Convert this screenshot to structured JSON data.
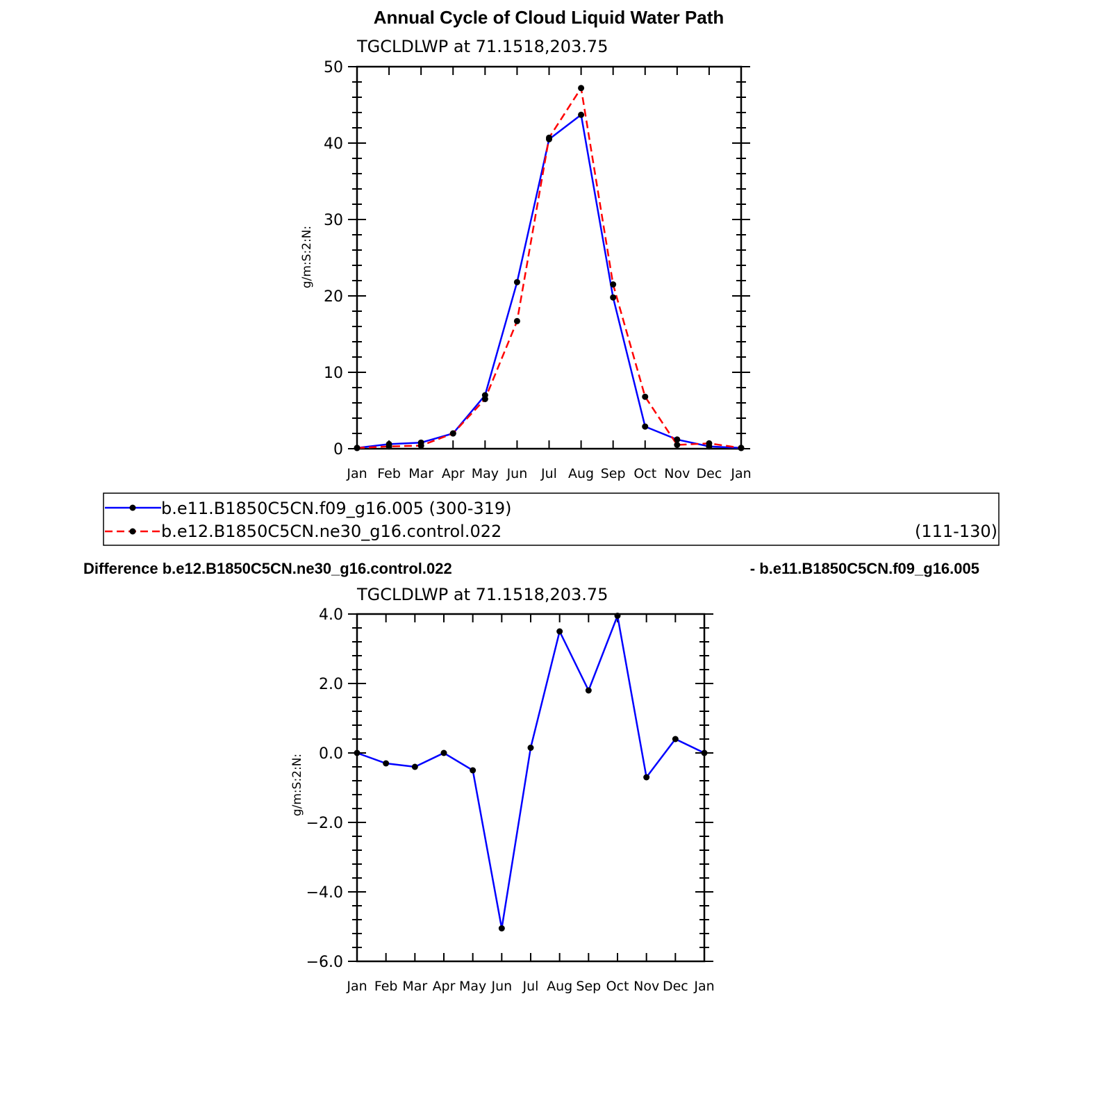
{
  "main_title": "Annual Cycle of Cloud Liquid Water Path",
  "diff_title_left": "Difference b.e12.B1850C5CN.ne30_g16.control.022",
  "diff_title_right": "- b.e11.B1850C5CN.f09_g16.005",
  "legend": {
    "entries": [
      {
        "label": "b.e11.B1850C5CN.f09_g16.005 (300-319)",
        "years": "",
        "color": "#0000ff",
        "dash": "solid"
      },
      {
        "label": "b.e12.B1850C5CN.ne30_g16.control.022",
        "years": "(111-130)",
        "color": "#ff0000",
        "dash": "dashed"
      }
    ]
  },
  "chart_data": [
    {
      "type": "line",
      "title": "TGCLDLWP  at  71.1518,203.75",
      "xlabel": "",
      "ylabel": "g/m:S:2:N:",
      "categories": [
        "Jan",
        "Feb",
        "Mar",
        "Apr",
        "May",
        "Jun",
        "Jul",
        "Aug",
        "Sep",
        "Oct",
        "Nov",
        "Dec",
        "Jan"
      ],
      "ylim": [
        0,
        50
      ],
      "yticks": [
        0,
        10,
        20,
        30,
        40,
        50
      ],
      "ytick_labels": [
        "0",
        "10",
        "20",
        "30",
        "40",
        "50"
      ],
      "series": [
        {
          "name": "b.e11.B1850C5CN.f09_g16.005 (300-319)",
          "color": "#0000ff",
          "dash": "solid",
          "values": [
            0.1,
            0.6,
            0.8,
            2.0,
            7.0,
            21.8,
            40.5,
            43.7,
            19.8,
            2.9,
            1.2,
            0.3,
            0.1
          ]
        },
        {
          "name": "b.e12.B1850C5CN.ne30_g16.control.022",
          "color": "#ff0000",
          "dash": "dashed",
          "values": [
            0.1,
            0.3,
            0.4,
            2.0,
            6.5,
            16.7,
            40.7,
            47.2,
            21.5,
            6.8,
            0.5,
            0.7,
            0.1
          ]
        }
      ]
    },
    {
      "type": "line",
      "title": "TGCLDLWP  at  71.1518,203.75",
      "xlabel": "",
      "ylabel": "g/m:S:2:N:",
      "categories": [
        "Jan",
        "Feb",
        "Mar",
        "Apr",
        "May",
        "Jun",
        "Jul",
        "Aug",
        "Sep",
        "Oct",
        "Nov",
        "Dec",
        "Jan"
      ],
      "ylim": [
        -6,
        4
      ],
      "yticks": [
        -6,
        -4,
        -2,
        0,
        2,
        4
      ],
      "ytick_labels": [
        "−6.0",
        "−4.0",
        "−2.0",
        "0.0",
        "2.0",
        "4.0"
      ],
      "series": [
        {
          "name": "",
          "color": "#0000ff",
          "dash": "solid",
          "values": [
            0.0,
            -0.3,
            -0.4,
            0.0,
            -0.5,
            -5.05,
            0.15,
            3.5,
            1.8,
            3.95,
            -0.7,
            0.4,
            0.0
          ]
        }
      ]
    }
  ]
}
